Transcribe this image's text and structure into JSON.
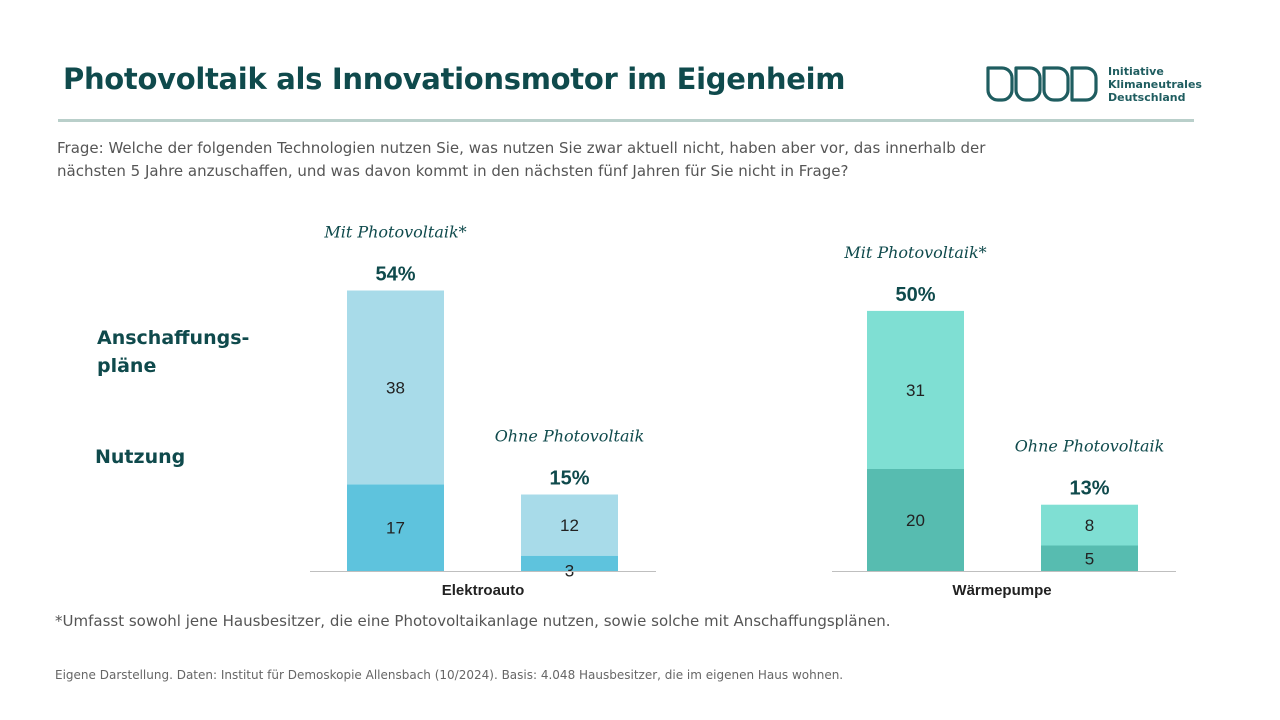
{
  "title": "Photovoltaik als Innovationsmotor im Eigenheim",
  "logo": {
    "lines": [
      "Initiative",
      "Klimaneutrales",
      "Deutschland"
    ],
    "color": "#1f5d60"
  },
  "question": "Frage: Welche der folgenden Technologien nutzen Sie, was nutzen Sie zwar aktuell nicht, haben aber vor, das innerhalb der nächsten 5 Jahre anzuschaffen, und was davon kommt in den nächsten fünf Jahren für Sie nicht in Frage?",
  "legend_labels": {
    "plans": "Anschaffungs-\npläne",
    "use": "Nutzung"
  },
  "footnote": "*Umfasst sowohl jene Hausbesitzer, die eine Photovoltaikanlage nutzen, sowie solche mit Anschaffungsplänen.",
  "source": "Eigene Darstellung. Daten: Institut für Demoskopie Allensbach (10/2024). Basis: 4.048 Hausbesitzer, die im eigenen Haus wohnen.",
  "chart_data": {
    "type": "bar",
    "stacked": true,
    "unit": "%",
    "ylim": [
      0,
      60
    ],
    "grid": false,
    "stack_order": [
      "Nutzung",
      "Anschaffungspläne"
    ],
    "categories": [
      {
        "name": "Elektroauto",
        "colors": {
          "Nutzung": "#5ec3dd",
          "Anschaffungspläne": "#a8dbe9"
        },
        "groups": [
          {
            "label": "Mit Photovoltaik*",
            "total": "54%",
            "values": {
              "Nutzung": 17,
              "Anschaffungspläne": 38
            }
          },
          {
            "label": "Ohne Photovoltaik",
            "total": "15%",
            "values": {
              "Nutzung": 3,
              "Anschaffungspläne": 12
            }
          }
        ]
      },
      {
        "name": "Wärmepumpe",
        "colors": {
          "Nutzung": "#57bcb0",
          "Anschaffungspläne": "#7fdfd3"
        },
        "groups": [
          {
            "label": "Mit Photovoltaik*",
            "total": "50%",
            "values": {
              "Nutzung": 20,
              "Anschaffungspläne": 31
            }
          },
          {
            "label": "Ohne Photovoltaik",
            "total": "13%",
            "values": {
              "Nutzung": 5,
              "Anschaffungspläne": 8
            }
          }
        ]
      }
    ]
  }
}
